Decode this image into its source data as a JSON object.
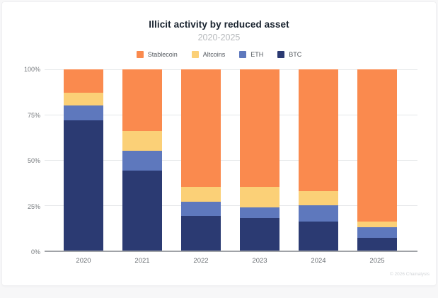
{
  "chart_data": {
    "type": "bar",
    "stacked": true,
    "title": "Illicit activity by reduced asset",
    "subtitle": "2020-2025",
    "categories": [
      "2020",
      "2021",
      "2022",
      "2023",
      "2024",
      "2025"
    ],
    "series": [
      {
        "name": "Stablecoin",
        "color": "#fa8a4e",
        "values": [
          13,
          34,
          65,
          65,
          67,
          84
        ]
      },
      {
        "name": "Altcoins",
        "color": "#fbd077",
        "values": [
          7,
          11,
          8,
          11,
          8,
          3
        ]
      },
      {
        "name": "ETH",
        "color": "#5e78bd",
        "values": [
          8,
          11,
          8,
          6,
          9,
          6
        ]
      },
      {
        "name": "BTC",
        "color": "#2b3a72",
        "values": [
          72,
          44,
          19,
          18,
          16,
          7
        ]
      }
    ],
    "y_ticks": [
      {
        "label": "0%",
        "value": 0
      },
      {
        "label": "25%",
        "value": 25
      },
      {
        "label": "50%",
        "value": 50
      },
      {
        "label": "75%",
        "value": 75
      },
      {
        "label": "100%",
        "value": 100
      }
    ],
    "ylim": [
      0,
      100
    ],
    "grid": true,
    "legend_position": "top"
  },
  "colors": {
    "title": "#18222e",
    "subtitle": "#b7babd",
    "axis_line": "#a0a3a7",
    "gridline": "#e5e7e9"
  },
  "footer": {
    "attribution": "© 2026 Chainalysis"
  }
}
